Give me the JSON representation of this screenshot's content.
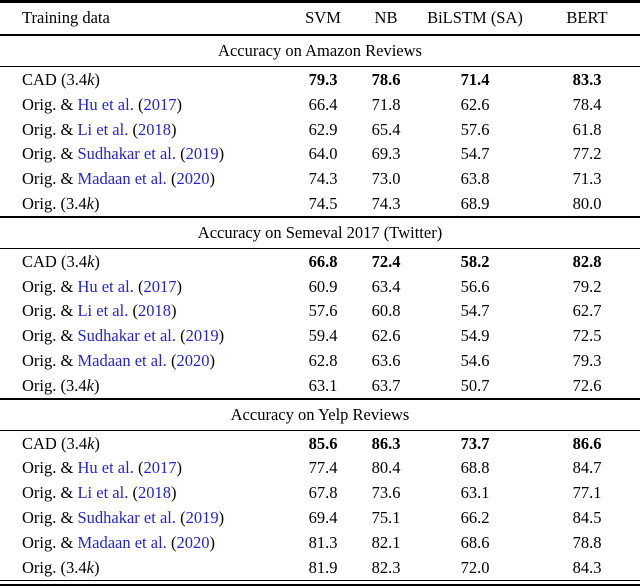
{
  "page": {
    "background": "#ffffff",
    "text_color": "#000000",
    "link_color": "#2424d6"
  },
  "table": {
    "header": {
      "training_data_label": "Training data",
      "models": [
        "SVM",
        "NB",
        "BiLSTM (SA)",
        "BERT"
      ]
    },
    "sections": [
      {
        "title": "Accuracy on Amazon Reviews",
        "rows": [
          {
            "bold": true,
            "label_parts": [
              {
                "text": "CAD (3.4",
                "style": "plain"
              },
              {
                "text": "k",
                "style": "italic"
              },
              {
                "text": ")",
                "style": "plain"
              }
            ],
            "values": [
              "79.3",
              "78.6",
              "71.4",
              "83.3"
            ]
          },
          {
            "bold": false,
            "label_parts": [
              {
                "text": "Orig. & ",
                "style": "plain"
              },
              {
                "text": "Hu et al.",
                "style": "link"
              },
              {
                "text": " (",
                "style": "plain"
              },
              {
                "text": "2017",
                "style": "link"
              },
              {
                "text": ")",
                "style": "plain"
              }
            ],
            "values": [
              "66.4",
              "71.8",
              "62.6",
              "78.4"
            ]
          },
          {
            "bold": false,
            "label_parts": [
              {
                "text": "Orig. & ",
                "style": "plain"
              },
              {
                "text": "Li et al.",
                "style": "link"
              },
              {
                "text": " (",
                "style": "plain"
              },
              {
                "text": "2018",
                "style": "link"
              },
              {
                "text": ")",
                "style": "plain"
              }
            ],
            "values": [
              "62.9",
              "65.4",
              "57.6",
              "61.8"
            ]
          },
          {
            "bold": false,
            "label_parts": [
              {
                "text": "Orig. & ",
                "style": "plain"
              },
              {
                "text": "Sudhakar et al.",
                "style": "link"
              },
              {
                "text": " (",
                "style": "plain"
              },
              {
                "text": "2019",
                "style": "link"
              },
              {
                "text": ")",
                "style": "plain"
              }
            ],
            "values": [
              "64.0",
              "69.3",
              "54.7",
              "77.2"
            ]
          },
          {
            "bold": false,
            "label_parts": [
              {
                "text": "Orig. & ",
                "style": "plain"
              },
              {
                "text": "Madaan et al.",
                "style": "link"
              },
              {
                "text": " (",
                "style": "plain"
              },
              {
                "text": "2020",
                "style": "link"
              },
              {
                "text": ")",
                "style": "plain"
              }
            ],
            "values": [
              "74.3",
              "73.0",
              "63.8",
              "71.3"
            ]
          },
          {
            "bold": false,
            "label_parts": [
              {
                "text": "Orig. (3.4",
                "style": "plain"
              },
              {
                "text": "k",
                "style": "italic"
              },
              {
                "text": ")",
                "style": "plain"
              }
            ],
            "values": [
              "74.5",
              "74.3",
              "68.9",
              "80.0"
            ]
          }
        ]
      },
      {
        "title": "Accuracy on Semeval 2017 (Twitter)",
        "rows": [
          {
            "bold": true,
            "label_parts": [
              {
                "text": "CAD (3.4",
                "style": "plain"
              },
              {
                "text": "k",
                "style": "italic"
              },
              {
                "text": ")",
                "style": "plain"
              }
            ],
            "values": [
              "66.8",
              "72.4",
              "58.2",
              "82.8"
            ]
          },
          {
            "bold": false,
            "label_parts": [
              {
                "text": "Orig. & ",
                "style": "plain"
              },
              {
                "text": "Hu et al.",
                "style": "link"
              },
              {
                "text": " (",
                "style": "plain"
              },
              {
                "text": "2017",
                "style": "link"
              },
              {
                "text": ")",
                "style": "plain"
              }
            ],
            "values": [
              "60.9",
              "63.4",
              "56.6",
              "79.2"
            ]
          },
          {
            "bold": false,
            "label_parts": [
              {
                "text": "Orig. & ",
                "style": "plain"
              },
              {
                "text": "Li et al.",
                "style": "link"
              },
              {
                "text": " (",
                "style": "plain"
              },
              {
                "text": "2018",
                "style": "link"
              },
              {
                "text": ")",
                "style": "plain"
              }
            ],
            "values": [
              "57.6",
              "60.8",
              "54.7",
              "62.7"
            ]
          },
          {
            "bold": false,
            "label_parts": [
              {
                "text": "Orig. & ",
                "style": "plain"
              },
              {
                "text": "Sudhakar et al.",
                "style": "link"
              },
              {
                "text": " (",
                "style": "plain"
              },
              {
                "text": "2019",
                "style": "link"
              },
              {
                "text": ")",
                "style": "plain"
              }
            ],
            "values": [
              "59.4",
              "62.6",
              "54.9",
              "72.5"
            ]
          },
          {
            "bold": false,
            "label_parts": [
              {
                "text": "Orig. & ",
                "style": "plain"
              },
              {
                "text": "Madaan et al.",
                "style": "link"
              },
              {
                "text": " (",
                "style": "plain"
              },
              {
                "text": "2020",
                "style": "link"
              },
              {
                "text": ")",
                "style": "plain"
              }
            ],
            "values": [
              "62.8",
              "63.6",
              "54.6",
              "79.3"
            ]
          },
          {
            "bold": false,
            "label_parts": [
              {
                "text": "Orig. (3.4",
                "style": "plain"
              },
              {
                "text": "k",
                "style": "italic"
              },
              {
                "text": ")",
                "style": "plain"
              }
            ],
            "values": [
              "63.1",
              "63.7",
              "50.7",
              "72.6"
            ]
          }
        ]
      },
      {
        "title": "Accuracy on Yelp Reviews",
        "rows": [
          {
            "bold": true,
            "label_parts": [
              {
                "text": "CAD (3.4",
                "style": "plain"
              },
              {
                "text": "k",
                "style": "italic"
              },
              {
                "text": ")",
                "style": "plain"
              }
            ],
            "values": [
              "85.6",
              "86.3",
              "73.7",
              "86.6"
            ]
          },
          {
            "bold": false,
            "label_parts": [
              {
                "text": "Orig. & ",
                "style": "plain"
              },
              {
                "text": "Hu et al.",
                "style": "link"
              },
              {
                "text": " (",
                "style": "plain"
              },
              {
                "text": "2017",
                "style": "link"
              },
              {
                "text": ")",
                "style": "plain"
              }
            ],
            "values": [
              "77.4",
              "80.4",
              "68.8",
              "84.7"
            ]
          },
          {
            "bold": false,
            "label_parts": [
              {
                "text": "Orig. & ",
                "style": "plain"
              },
              {
                "text": "Li et al.",
                "style": "link"
              },
              {
                "text": " (",
                "style": "plain"
              },
              {
                "text": "2018",
                "style": "link"
              },
              {
                "text": ")",
                "style": "plain"
              }
            ],
            "values": [
              "67.8",
              "73.6",
              "63.1",
              "77.1"
            ]
          },
          {
            "bold": false,
            "label_parts": [
              {
                "text": "Orig. & ",
                "style": "plain"
              },
              {
                "text": "Sudhakar et al.",
                "style": "link"
              },
              {
                "text": " (",
                "style": "plain"
              },
              {
                "text": "2019",
                "style": "link"
              },
              {
                "text": ")",
                "style": "plain"
              }
            ],
            "values": [
              "69.4",
              "75.1",
              "66.2",
              "84.5"
            ]
          },
          {
            "bold": false,
            "label_parts": [
              {
                "text": "Orig. & ",
                "style": "plain"
              },
              {
                "text": "Madaan et al.",
                "style": "link"
              },
              {
                "text": " (",
                "style": "plain"
              },
              {
                "text": "2020",
                "style": "link"
              },
              {
                "text": ")",
                "style": "plain"
              }
            ],
            "values": [
              "81.3",
              "82.1",
              "68.6",
              "78.8"
            ]
          },
          {
            "bold": false,
            "label_parts": [
              {
                "text": "Orig. (3.4",
                "style": "plain"
              },
              {
                "text": "k",
                "style": "italic"
              },
              {
                "text": ")",
                "style": "plain"
              }
            ],
            "values": [
              "81.9",
              "82.3",
              "72.0",
              "84.3"
            ]
          }
        ]
      }
    ]
  }
}
